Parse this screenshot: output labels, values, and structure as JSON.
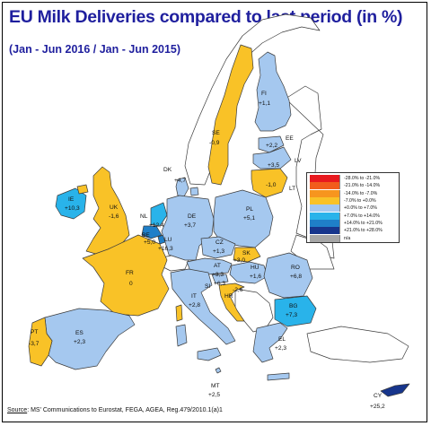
{
  "title": "EU Milk Deliveries compared to last period (in %)",
  "subtitle": "(Jan - Jun 2016 / Jan - Jun 2015)",
  "source_label": "Source",
  "source_text": ": MS' Communications to Eurostat, FEGA, AGEA, Reg.479/2010.1(a)1",
  "colors": {
    "negative_0_7": "#f9c227",
    "positive_0_7": "#a5c8ef",
    "positive_7_14": "#29b3ea",
    "land_outside": "#ffffff",
    "border": "#3b3b3b"
  },
  "legend": [
    {
      "label": "-28.0%  to  -21.0%",
      "color": "#e8191e"
    },
    {
      "label": "-21.0%  to  -14.0%",
      "color": "#f25c1c"
    },
    {
      "label": "-14.0%  to  -7.0%",
      "color": "#f7951e"
    },
    {
      "label": "-7.0%  to  +0.0%",
      "color": "#f9c227"
    },
    {
      "label": "+0.0%  to  +7.0%",
      "color": "#a5c8ef"
    },
    {
      "label": "+7.0%  to  +14.0%",
      "color": "#29b3ea"
    },
    {
      "label": "+14.0%  to  +21.0%",
      "color": "#1f7fc8"
    },
    {
      "label": "+21.0%  to  +28.0%",
      "color": "#17358c"
    },
    {
      "label": "n/a",
      "color": "#a6a6a6"
    }
  ],
  "countries": {
    "FI": {
      "code": "FI",
      "value": "+1,1"
    },
    "SE": {
      "code": "SE",
      "value": "-0,9"
    },
    "EE": {
      "code": "EE",
      "value": "+2,2"
    },
    "LV": {
      "code": "LV",
      "value": "+3,5"
    },
    "LT": {
      "code": "LT",
      "value": "-1,0"
    },
    "DK": {
      "code": "DK",
      "value": "+4,7"
    },
    "IE": {
      "code": "IE",
      "value": "+10,3"
    },
    "UK": {
      "code": "UK",
      "value": "-1,6"
    },
    "NL": {
      "code": "NL",
      "value": "+12,4"
    },
    "BE": {
      "code": "BE",
      "value": "+5,0"
    },
    "LU": {
      "code": "LU",
      "value": "+16,3"
    },
    "DE": {
      "code": "DE",
      "value": "+3,7"
    },
    "PL": {
      "code": "PL",
      "value": "+5,1"
    },
    "CZ": {
      "code": "CZ",
      "value": "+1,3"
    },
    "SK": {
      "code": "SK",
      "value": "+3,0"
    },
    "AT": {
      "code": "AT",
      "value": "+3,3"
    },
    "HU": {
      "code": "HU",
      "value": "+1,6"
    },
    "RO": {
      "code": "RO",
      "value": "+6,8"
    },
    "FR": {
      "code": "FR",
      "value": "0"
    },
    "SI": {
      "code": "SI",
      "value": "+6,3"
    },
    "HR": {
      "code": "HR",
      "value": "-2,6"
    },
    "BG": {
      "code": "BG",
      "value": "+7,3"
    },
    "IT": {
      "code": "IT",
      "value": "+2,8"
    },
    "ES": {
      "code": "ES",
      "value": "+2,3"
    },
    "PT": {
      "code": "PT",
      "value": "-3,7"
    },
    "EL": {
      "code": "EL",
      "value": "+2,3"
    },
    "MT": {
      "code": "MT",
      "value": "+2,5"
    },
    "CY": {
      "code": "CY",
      "value": "+25,2"
    }
  }
}
